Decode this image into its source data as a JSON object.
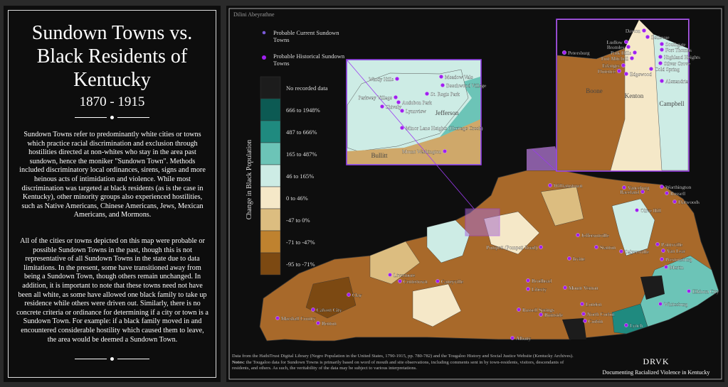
{
  "left_panel": {
    "title": "Sundown Towns vs. Black Residents of Kentucky",
    "subtitle": "1870 - 1915",
    "paragraphs": [
      "Sundown Towns refer to predominantly white cities or towns which practice racial discrimination and exclusion through hostilities directed at non-whites who stay in the area past sundown, hence the moniker \"Sundown Town\". Methods included discriminatory local ordinances, sirens, signs and more heinous acts of intimidation and violence. While most discrimination was targeted at black residents (as is the case in Kentucky), other minority groups also experienced hostilities, such as Native Americans, Chinese Americans, Jews, Mexican Americans, and Mormons.",
      "All of the cities or towns depicted on this map were probable or possible Sundown Towns in the past, though this is not representative of all Sundown Towns in the state due to data limitations. In the present, some have transitioned away from being a Sundown Town, though others remain unchanged. In addition, it is important to note that these towns need not have been all white, as some have allowed one black family to take up residence while others were driven out. Similarly, there is no concrete criteria or ordinance for determining if a city or town is a Sundown Town. For example: if a black family moved in and encountered considerable hostility which caused them to leave, the area would be deemed a Sundown Town."
    ]
  },
  "map": {
    "author": "Dilini Abeyrathne",
    "legend": {
      "current": "Probable Current Sundown Towns",
      "historical": "Probable Historical Sundown Towns",
      "scale_title": "Change in Black Population",
      "classes": [
        {
          "label": "No recorded data",
          "color": "#1c1c1c"
        },
        {
          "label": "666 to 1948%",
          "color": "#0c5a53"
        },
        {
          "label": "487 to 666%",
          "color": "#1f8a7f"
        },
        {
          "label": "165 to 487%",
          "color": "#6cc4b7"
        },
        {
          "label": "46 to 165%",
          "color": "#cdece5"
        },
        {
          "label": "0 to 46%",
          "color": "#f5e8c8"
        },
        {
          "label": "-47 to 0%",
          "color": "#dcbd80"
        },
        {
          "label": "-71 to -47%",
          "color": "#bf822f"
        },
        {
          "label": "-95 to -71%",
          "color": "#7c4912"
        }
      ]
    },
    "towns": [
      "Williamstown",
      "Vanceburg",
      "Worthington",
      "Raceland",
      "Russell",
      "Flatwoods",
      "Olive Hill",
      "Jeffersonville",
      "Pompeii (Pompeii Road)",
      "Stanton",
      "Salyersville",
      "Paintsville",
      "Van Lear",
      "Prestonsburg",
      "Martin",
      "Irvine",
      "Elkhorn City",
      "Whitesburg",
      "Lynch",
      "Livermore",
      "Centertown",
      "Caneyville",
      "Calvert City",
      "Marshall County",
      "Benton",
      "Clay",
      "Brodhead",
      "Liberty",
      "Mount Vernon",
      "Russell Springs",
      "Burnside",
      "London",
      "North Corbin",
      "Corbin",
      "Albany"
    ],
    "jefferson_inset": {
      "counties": [
        "Jefferson",
        "Bullitt"
      ],
      "towns": [
        "Windy Hills",
        "Meadow Vale",
        "Beechwood Village",
        "St. Regis Park",
        "Parkway Village",
        "Audubon Park",
        "Shively",
        "Lynnview",
        "Minor Lane Heights (Heritage Creek)",
        "Mount Washington"
      ]
    },
    "northern_inset": {
      "counties": [
        "Boone",
        "Kenton",
        "Campbell"
      ],
      "towns": [
        "Dayton",
        "Bellevue",
        "Ludlow",
        "Southgate",
        "Bromley",
        "Fort Thomas",
        "Park Hills",
        "Highland Heights",
        "Fort Mitchell",
        "Silver Grove",
        "Erlanger",
        "Cold Spring",
        "Florence",
        "Edgewood",
        "Petersburg",
        "Alexandria"
      ]
    },
    "footnote": {
      "source": "Data from the HathiTrust Digital Library (Negro Population in the United States, 1790-1915, pp. 780-782) and the Tougaloo History and Social Justice Website (Kentucky Archives).",
      "notes_label": "Notes:",
      "notes": "the Tougaloo data for Sundown Towns is primarily based on word of mouth and site observations, including comments sent in by town-residents, visitors, descendants of residents, and others. As such, the veritability of the data may be subject to various interpretations."
    },
    "logo": {
      "name": "DRVK",
      "tagline": "Documenting Racialized Violence in Kentucky"
    }
  }
}
